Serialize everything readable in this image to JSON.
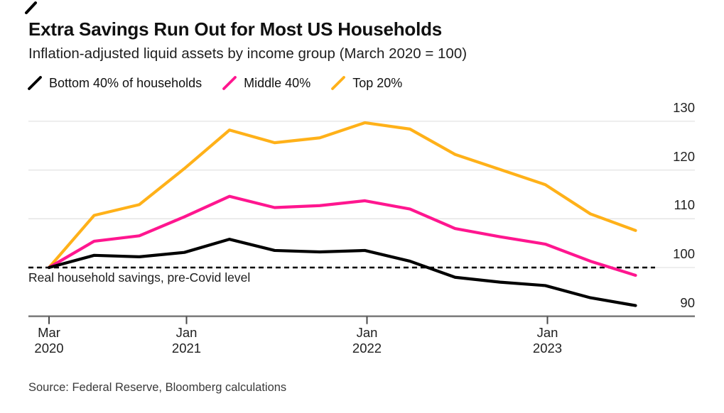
{
  "header": {
    "title": "Extra Savings Run Out for Most US Households",
    "subtitle": "Inflation-adjusted liquid assets by income group (March 2020 = 100)"
  },
  "source": "Source: Federal Reserve, Bloomberg calculations",
  "chart_data": {
    "type": "line",
    "x": [
      "Mar 2020",
      "Jun 2020",
      "Sep 2020",
      "Dec 2020",
      "Mar 2021",
      "Jun 2021",
      "Sep 2021",
      "Dec 2021",
      "Mar 2022",
      "Jun 2022",
      "Sep 2022",
      "Dec 2022",
      "Mar 2023",
      "Jun 2023"
    ],
    "series": [
      {
        "name": "Bottom 40% of households",
        "color": "#000000",
        "values": [
          100,
          102.5,
          102.2,
          103.1,
          105.8,
          103.5,
          103.2,
          103.5,
          101.3,
          98.0,
          97.0,
          96.3,
          93.8,
          92.2
        ]
      },
      {
        "name": "Middle 40%",
        "color": "#ff168f",
        "values": [
          100,
          105.4,
          106.5,
          110.4,
          114.6,
          112.3,
          112.7,
          113.7,
          112.0,
          108.0,
          106.3,
          104.8,
          101.3,
          98.4
        ]
      },
      {
        "name": "Top 20%",
        "color": "#ffb119",
        "values": [
          100,
          110.7,
          112.9,
          120.3,
          128.2,
          125.6,
          126.6,
          129.7,
          128.4,
          123.2,
          120.1,
          117.0,
          111.0,
          107.6
        ]
      }
    ],
    "yticks": [
      90,
      100,
      110,
      120,
      130
    ],
    "ylim": [
      87,
      133
    ],
    "xticks": [
      {
        "line1": "Mar",
        "line2": "2020",
        "index": 0
      },
      {
        "line1": "Jan",
        "line2": "2021",
        "index": 3
      },
      {
        "line1": "Jan",
        "line2": "2022",
        "index": 7
      },
      {
        "line1": "Jan",
        "line2": "2023",
        "index": 11
      }
    ],
    "baseline": {
      "value": 100,
      "label": "Real household savings, pre-Covid level"
    },
    "legend_position": "top",
    "grid": true
  }
}
